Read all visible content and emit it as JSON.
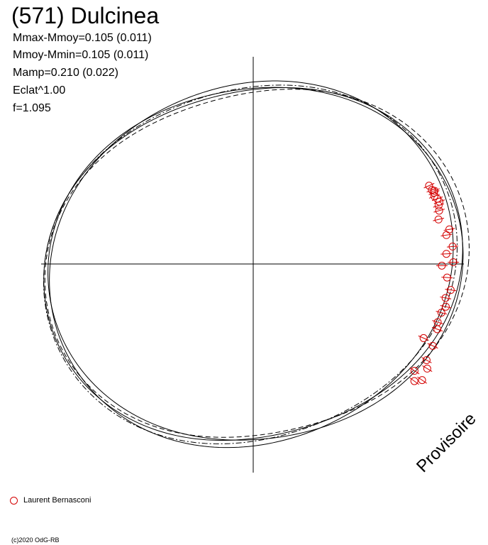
{
  "title": "(571) Dulcinea",
  "stats": [
    "Mmax-Mmoy=0.105 (0.011)",
    "Mmoy-Mmin=0.105 (0.011)",
    "Mamp=0.210 (0.022)",
    "Eclat^1.00",
    "f=1.095"
  ],
  "watermark": "Provisoire",
  "legend": {
    "label": "Laurent Bernasconi",
    "color": "#d40000"
  },
  "copyright": "(c)2020 OdG-RB",
  "chart_data": {
    "type": "scatter",
    "coordinate_system": "polar",
    "grid": false,
    "axes_lines": true,
    "curves": [
      {
        "style": "solid",
        "amp": 0.105,
        "drift": 0.0,
        "phase": 0.55
      },
      {
        "style": "solid",
        "amp": 0.088,
        "drift": 0.012,
        "phase": 0.35
      },
      {
        "style": "solid",
        "amp": 0.072,
        "drift": -0.01,
        "phase": 0.8
      },
      {
        "style": "dashed",
        "amp": 0.118,
        "drift": 0.02,
        "phase": 0.5
      },
      {
        "style": "dashdot",
        "amp": 0.096,
        "drift": -0.015,
        "phase": 0.68
      }
    ],
    "series": [
      {
        "name": "Laurent Bernasconi",
        "color": "#d40000",
        "points": [
          {
            "angle_deg": 24.0,
            "r": 1.005
          },
          {
            "angle_deg": 22.5,
            "r": 1.01
          },
          {
            "angle_deg": 22.0,
            "r": 1.02
          },
          {
            "angle_deg": 21.5,
            "r": 1.015
          },
          {
            "angle_deg": 20.5,
            "r": 1.01
          },
          {
            "angle_deg": 19.5,
            "r": 1.02
          },
          {
            "angle_deg": 18.5,
            "r": 1.025
          },
          {
            "angle_deg": 17.5,
            "r": 1.015
          },
          {
            "angle_deg": 16.0,
            "r": 1.01
          },
          {
            "angle_deg": 13.5,
            "r": 0.995
          },
          {
            "angle_deg": 10.0,
            "r": 1.04
          },
          {
            "angle_deg": 8.5,
            "r": 1.02
          },
          {
            "angle_deg": 5.0,
            "r": 1.045
          },
          {
            "angle_deg": 3.0,
            "r": 1.01
          },
          {
            "angle_deg": 0.5,
            "r": 1.045
          },
          {
            "angle_deg": -0.5,
            "r": 0.985
          },
          {
            "angle_deg": -4.0,
            "r": 1.015
          },
          {
            "angle_deg": -7.5,
            "r": 1.04
          },
          {
            "angle_deg": -10.0,
            "r": 1.02
          },
          {
            "angle_deg": -12.5,
            "r": 1.03
          },
          {
            "angle_deg": -14.5,
            "r": 1.015
          },
          {
            "angle_deg": -17.5,
            "r": 1.01
          },
          {
            "angle_deg": -19.5,
            "r": 1.02
          },
          {
            "angle_deg": -23.5,
            "r": 0.97
          },
          {
            "angle_deg": -24.5,
            "r": 1.03
          },
          {
            "angle_deg": -29.0,
            "r": 1.035
          },
          {
            "angle_deg": -31.0,
            "r": 1.06
          },
          {
            "angle_deg": -33.5,
            "r": 1.01
          },
          {
            "angle_deg": -34.5,
            "r": 1.07
          },
          {
            "angle_deg": -36.0,
            "r": 1.04
          }
        ]
      }
    ]
  }
}
